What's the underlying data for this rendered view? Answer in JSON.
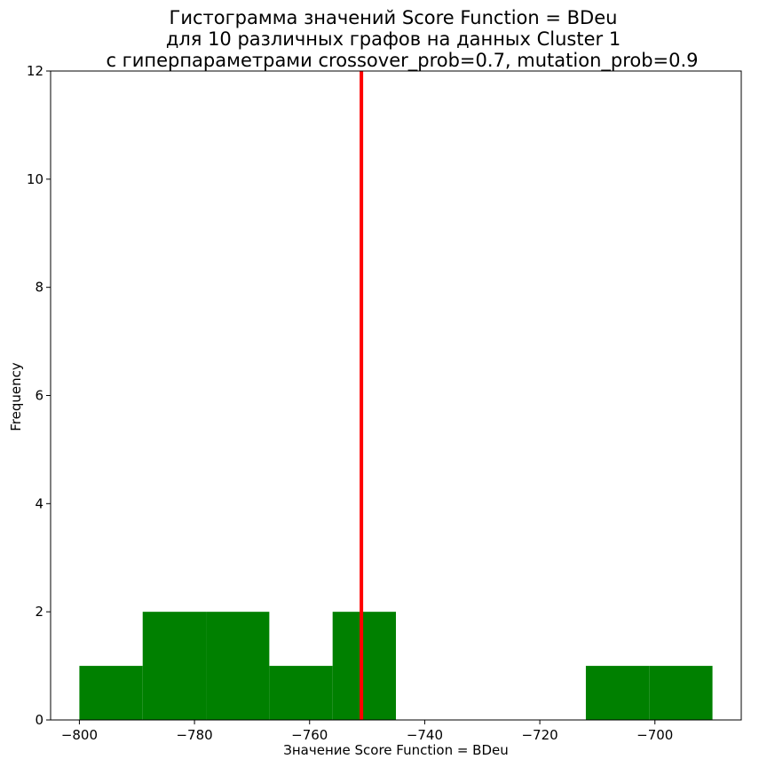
{
  "chart_data": {
    "type": "bar",
    "title_lines": [
      "Гистограмма значений Score Function = BDeu",
      "для 10 различных графов на данных Cluster 1",
      "с гиперпараметрами crossover_prob=0.7, mutation_prob=0.9"
    ],
    "xlabel": "Значение Score Function = BDeu",
    "ylabel": "Frequency",
    "xlim": [
      -805,
      -685
    ],
    "ylim": [
      0,
      12
    ],
    "x_ticks": [
      -800,
      -780,
      -760,
      -740,
      -720,
      -700
    ],
    "x_tick_labels": [
      "−800",
      "−780",
      "−760",
      "−740",
      "−720",
      "−700"
    ],
    "y_ticks": [
      0,
      2,
      4,
      6,
      8,
      10,
      12
    ],
    "y_tick_labels": [
      "0",
      "2",
      "4",
      "6",
      "8",
      "10",
      "12"
    ],
    "bins": [
      {
        "x0": -800.0,
        "x1": -789.0,
        "count": 1
      },
      {
        "x0": -789.0,
        "x1": -778.0,
        "count": 2
      },
      {
        "x0": -778.0,
        "x1": -767.0,
        "count": 2
      },
      {
        "x0": -767.0,
        "x1": -756.0,
        "count": 1
      },
      {
        "x0": -756.0,
        "x1": -745.0,
        "count": 2
      },
      {
        "x0": -745.0,
        "x1": -734.0,
        "count": 0
      },
      {
        "x0": -734.0,
        "x1": -723.0,
        "count": 0
      },
      {
        "x0": -723.0,
        "x1": -712.0,
        "count": 0
      },
      {
        "x0": -712.0,
        "x1": -701.0,
        "count": 1
      },
      {
        "x0": -701.0,
        "x1": -690.0,
        "count": 1
      }
    ],
    "bar_color": "#008000",
    "mean_line": {
      "x": -751,
      "color": "#ff0000"
    },
    "grid": false
  }
}
